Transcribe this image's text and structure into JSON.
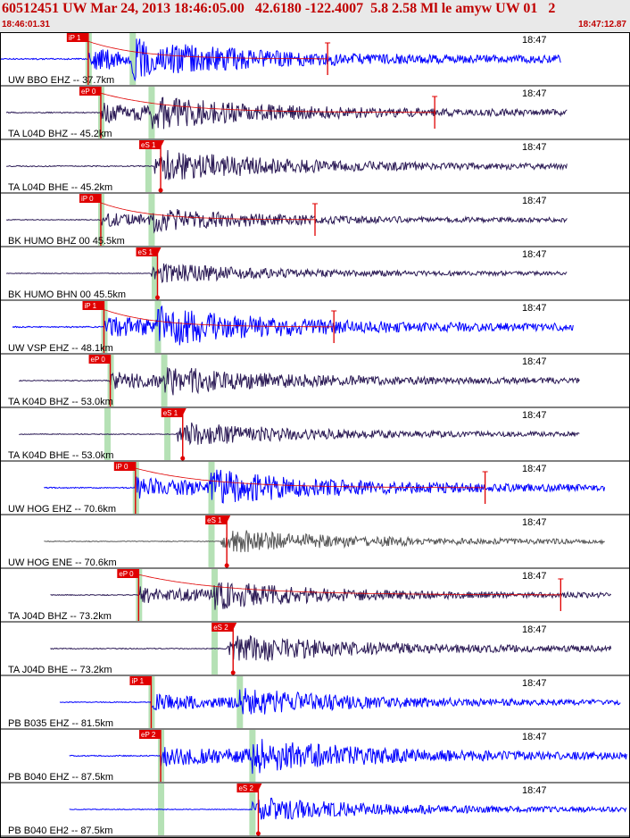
{
  "header": {
    "title": "60512451 UW Mar 24, 2013 18:46:05.00   42.6180 -122.4007  5.8 2.58 Ml le amyw UW 01   2",
    "start_time": "18:46:01.31",
    "end_time": "18:47:12.87"
  },
  "colors": {
    "trace_blue": "#0000ff",
    "trace_dark": "#2b1a55",
    "trace_gray": "#555555",
    "pick_red": "#e00000",
    "window_green": "#a8dca8",
    "frame": "#000000"
  },
  "chart_data": {
    "type": "seismogram",
    "time_axis": {
      "start": "18:46:01.31",
      "end": "18:47:12.87",
      "minute_label": "18:47"
    },
    "traces": [
      {
        "label": "UW BBO EHZ --  37.7km",
        "color": "blue",
        "amp": 1.0,
        "t_start": 0,
        "t_end": 0.89,
        "p_pick": {
          "label": "iP 1",
          "t": 0.14
        },
        "s_pick": null,
        "green": [
          0.14,
          0.21
        ],
        "coda": 0.52
      },
      {
        "label": "TA L04D BHZ --  45.2km",
        "color": "dark",
        "amp": 0.85,
        "t_start": 0.01,
        "t_end": 0.9,
        "p_pick": {
          "label": "eP 0",
          "t": 0.16
        },
        "s_pick": null,
        "green": [
          0.16,
          0.24
        ],
        "coda": 0.69
      },
      {
        "label": "TA L04D BHE --  45.2km",
        "color": "dark",
        "amp": 0.8,
        "t_start": 0.01,
        "t_end": 0.9,
        "p_pick": null,
        "s_pick": {
          "label": "eS 1",
          "t": 0.255
        },
        "green": [
          0.235
        ],
        "coda": null
      },
      {
        "label": "BK HUMO BHZ 00  45.5km",
        "color": "dark",
        "amp": 0.6,
        "t_start": 0.01,
        "t_end": 0.9,
        "p_pick": {
          "label": "iP 0",
          "t": 0.16
        },
        "s_pick": null,
        "green": [
          0.16,
          0.24
        ],
        "coda": 0.5
      },
      {
        "label": "BK HUMO BHN 00  45.5km",
        "color": "dark",
        "amp": 0.5,
        "t_start": 0.01,
        "t_end": 0.9,
        "p_pick": null,
        "s_pick": {
          "label": "eS 1",
          "t": 0.25
        },
        "green": [
          0.245
        ],
        "coda": null
      },
      {
        "label": "UW VSP EHZ --  48.1km",
        "color": "blue",
        "amp": 1.0,
        "t_start": 0.02,
        "t_end": 0.91,
        "p_pick": {
          "label": "iP 1",
          "t": 0.165
        },
        "s_pick": null,
        "green": [
          0.165,
          0.25
        ],
        "coda": 0.53
      },
      {
        "label": "TA K04D BHZ --  53.0km",
        "color": "dark",
        "amp": 0.75,
        "t_start": 0.03,
        "t_end": 0.92,
        "p_pick": {
          "label": "eP 0",
          "t": 0.175
        },
        "s_pick": null,
        "green": [
          0.175,
          0.26
        ],
        "coda": null
      },
      {
        "label": "TA K04D BHE --  53.0km",
        "color": "dark",
        "amp": 0.6,
        "t_start": 0.03,
        "t_end": 0.92,
        "p_pick": null,
        "s_pick": {
          "label": "eS 1",
          "t": 0.29
        },
        "green": [
          0.17,
          0.265
        ],
        "coda": null
      },
      {
        "label": "UW HOG EHZ --  70.6km",
        "color": "blue",
        "amp": 0.9,
        "t_start": 0.07,
        "t_end": 0.96,
        "p_pick": {
          "label": "iP 0",
          "t": 0.215
        },
        "s_pick": null,
        "green": [
          0.215,
          0.335
        ],
        "coda": 0.77
      },
      {
        "label": "UW HOG ENE --  70.6km",
        "color": "gray",
        "amp": 0.6,
        "t_start": 0.07,
        "t_end": 0.96,
        "p_pick": null,
        "s_pick": {
          "label": "eS 1",
          "t": 0.36
        },
        "green": [
          0.335
        ],
        "coda": null
      },
      {
        "label": "TA J04D BHZ --  73.2km",
        "color": "dark",
        "amp": 0.7,
        "t_start": 0.08,
        "t_end": 0.97,
        "p_pick": {
          "label": "eP 0",
          "t": 0.22
        },
        "s_pick": null,
        "green": [
          0.22,
          0.34
        ],
        "coda": 0.89
      },
      {
        "label": "TA J04D BHE --  73.2km",
        "color": "dark",
        "amp": 0.75,
        "t_start": 0.08,
        "t_end": 0.97,
        "p_pick": null,
        "s_pick": {
          "label": "eS 2",
          "t": 0.37
        },
        "green": [
          0.34
        ],
        "coda": null
      },
      {
        "label": "PB B035 EHZ --  81.5km",
        "color": "blue",
        "amp": 0.7,
        "t_start": 0.095,
        "t_end": 0.985,
        "p_pick": {
          "label": "iP 1",
          "t": 0.24
        },
        "s_pick": null,
        "green": [
          0.24,
          0.38
        ],
        "coda": null
      },
      {
        "label": "PB B040 EHZ --  87.5km",
        "color": "blue",
        "amp": 0.9,
        "t_start": 0.11,
        "t_end": 0.995,
        "p_pick": {
          "label": "eP 2",
          "t": 0.255
        },
        "s_pick": null,
        "green": [
          0.255,
          0.4
        ],
        "coda": null
      },
      {
        "label": "PB B040 EH2 --  87.5km",
        "color": "blue",
        "amp": 0.6,
        "t_start": 0.11,
        "t_end": 0.995,
        "p_pick": null,
        "s_pick": {
          "label": "eS 2",
          "t": 0.41
        },
        "green": [
          0.255,
          0.4
        ],
        "coda": null
      }
    ]
  }
}
